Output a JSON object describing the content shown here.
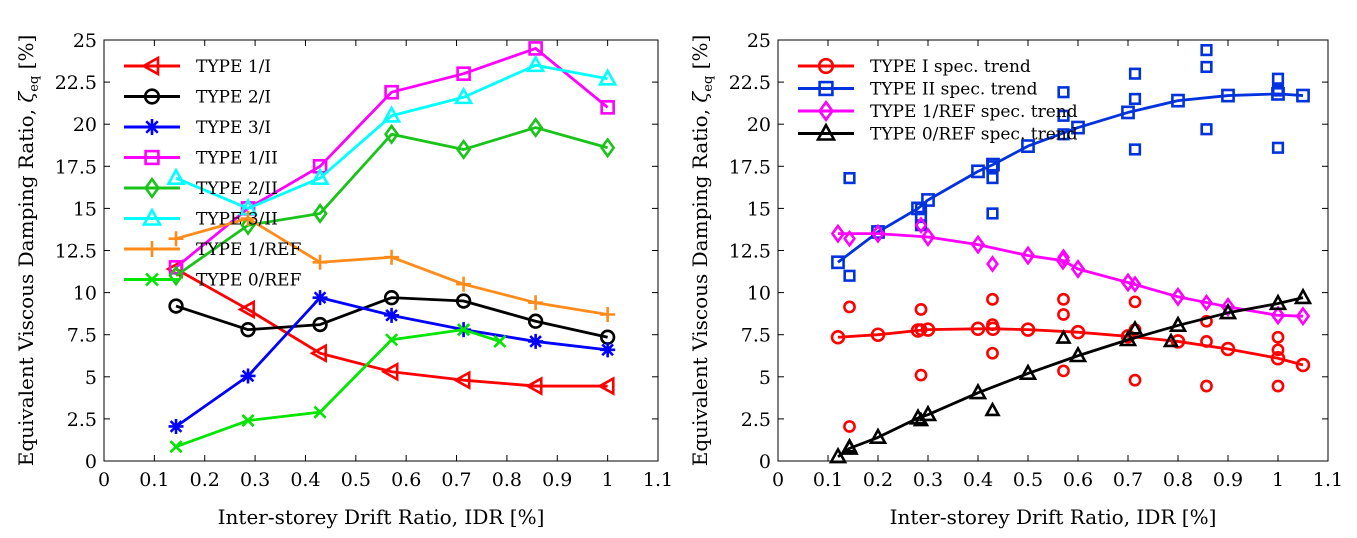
{
  "chart_data": [
    {
      "type": "line",
      "xlabel": "Inter-storey Drift Ratio, IDR [%]",
      "ylabel_main": "Equivalent Viscous Damping Ratio, ",
      "ylabel_sym": "ζ",
      "ylabel_sub": "eq",
      "ylabel_unit": " [%]",
      "xlim": [
        0,
        1.1
      ],
      "ylim": [
        0,
        25
      ],
      "xticks": [
        "0",
        "0.1",
        "0.2",
        "0.3",
        "0.4",
        "0.5",
        "0.6",
        "0.7",
        "0.8",
        "0.9",
        "1",
        "1.1"
      ],
      "xtick_values": [
        0,
        0.1,
        0.2,
        0.3,
        0.4,
        0.5,
        0.6,
        0.7,
        0.8,
        0.9,
        1,
        1.1
      ],
      "yticks": [
        "0",
        "2.5",
        "5",
        "7.5",
        "10",
        "12.5",
        "15",
        "17.5",
        "20",
        "22.5",
        "25"
      ],
      "ytick_values": [
        0,
        2.5,
        5,
        7.5,
        10,
        12.5,
        15,
        17.5,
        20,
        22.5,
        25
      ],
      "grid": false,
      "legend_position": "top-left",
      "series": [
        {
          "name": "TYPE 1/I",
          "color": "#ff0000",
          "marker": "triangle-left",
          "x": [
            0.143,
            0.286,
            0.429,
            0.571,
            0.714,
            0.857,
            1.0
          ],
          "y": [
            11.4,
            9.0,
            6.4,
            5.3,
            4.8,
            4.45,
            4.45
          ]
        },
        {
          "name": "TYPE 2/I",
          "color": "#000000",
          "marker": "circle",
          "x": [
            0.143,
            0.286,
            0.429,
            0.571,
            0.714,
            0.857,
            1.0
          ],
          "y": [
            9.2,
            7.8,
            8.1,
            9.7,
            9.5,
            8.3,
            7.35
          ]
        },
        {
          "name": "TYPE 3/I",
          "color": "#0000ff",
          "marker": "asterisk",
          "x": [
            0.143,
            0.286,
            0.429,
            0.571,
            0.714,
            0.857,
            1.0
          ],
          "y": [
            2.05,
            5.05,
            9.7,
            8.65,
            7.8,
            7.1,
            6.6
          ]
        },
        {
          "name": "TYPE 1/II",
          "color": "#ff00ff",
          "marker": "square",
          "x": [
            0.143,
            0.286,
            0.429,
            0.571,
            0.714,
            0.857,
            1.0
          ],
          "y": [
            11.5,
            15.0,
            17.5,
            21.9,
            23.0,
            24.5,
            21.0
          ]
        },
        {
          "name": "TYPE 2/II",
          "color": "#19c419",
          "marker": "diamond",
          "x": [
            0.143,
            0.286,
            0.429,
            0.571,
            0.714,
            0.857,
            1.0
          ],
          "y": [
            11.0,
            14.0,
            14.7,
            19.4,
            18.5,
            19.8,
            18.6
          ]
        },
        {
          "name": "TYPE 3/II",
          "color": "#00ffff",
          "marker": "triangle-up",
          "x": [
            0.143,
            0.286,
            0.429,
            0.571,
            0.714,
            0.857,
            1.0
          ],
          "y": [
            16.8,
            15.0,
            16.8,
            20.5,
            21.6,
            23.5,
            22.7
          ]
        },
        {
          "name": "TYPE 1/REF",
          "color": "#ff8c1a",
          "marker": "plus",
          "x": [
            0.143,
            0.286,
            0.429,
            0.571,
            0.714,
            0.857,
            1.0
          ],
          "y": [
            13.2,
            14.4,
            11.8,
            12.1,
            10.5,
            9.4,
            8.7
          ]
        },
        {
          "name": "TYPE 0/REF",
          "color": "#00e600",
          "marker": "cross",
          "x": [
            0.143,
            0.286,
            0.429,
            0.571,
            0.714,
            0.786
          ],
          "y": [
            0.85,
            2.4,
            2.9,
            7.2,
            7.8,
            7.1
          ]
        }
      ]
    },
    {
      "type": "scatter",
      "xlabel": "Inter-storey Drift Ratio, IDR [%]",
      "ylabel_main": "Equivalent Viscous Damping Ratio, ",
      "ylabel_sym": "ζ",
      "ylabel_sub": "eq",
      "ylabel_unit": " [%]",
      "xlim": [
        0,
        1.1
      ],
      "ylim": [
        0,
        25
      ],
      "xticks": [
        "0",
        "0.1",
        "0.2",
        "0.3",
        "0.4",
        "0.5",
        "0.6",
        "0.7",
        "0.8",
        "0.9",
        "1",
        "1.1"
      ],
      "xtick_values": [
        0,
        0.1,
        0.2,
        0.3,
        0.4,
        0.5,
        0.6,
        0.7,
        0.8,
        0.9,
        1,
        1.1
      ],
      "yticks": [
        "0",
        "2.5",
        "5",
        "7.5",
        "10",
        "12.5",
        "15",
        "17.5",
        "20",
        "22.5",
        "25"
      ],
      "ytick_values": [
        0,
        2.5,
        5,
        7.5,
        10,
        12.5,
        15,
        17.5,
        20,
        22.5,
        25
      ],
      "grid": false,
      "legend_position": "top-left",
      "series": [
        {
          "name": "TYPE I spec. trend",
          "color": "#ff0000",
          "marker": "circle",
          "trend_x": [
            0.12,
            0.2,
            0.28,
            0.3,
            0.4,
            0.43,
            0.5,
            0.6,
            0.7,
            0.8,
            0.9,
            1.0,
            1.05
          ],
          "trend_y": [
            7.35,
            7.5,
            7.75,
            7.8,
            7.85,
            7.85,
            7.8,
            7.65,
            7.4,
            7.1,
            6.65,
            6.1,
            5.7
          ],
          "points_x": [
            0.143,
            0.143,
            0.286,
            0.286,
            0.286,
            0.429,
            0.429,
            0.429,
            0.571,
            0.571,
            0.571,
            0.714,
            0.714,
            0.714,
            0.857,
            0.857,
            0.857,
            1.0,
            1.0,
            1.0
          ],
          "points_y": [
            9.15,
            2.05,
            9.0,
            7.8,
            5.1,
            9.6,
            8.1,
            6.4,
            9.6,
            8.7,
            5.35,
            9.45,
            7.8,
            4.8,
            8.3,
            7.1,
            4.45,
            7.35,
            6.6,
            4.45
          ]
        },
        {
          "name": "TYPE II spec. trend",
          "color": "#0033dd",
          "marker": "square",
          "trend_x": [
            0.12,
            0.2,
            0.28,
            0.3,
            0.4,
            0.43,
            0.5,
            0.6,
            0.7,
            0.8,
            0.9,
            1.0,
            1.05
          ],
          "trend_y": [
            11.8,
            13.6,
            15.0,
            15.5,
            17.2,
            17.6,
            18.7,
            19.8,
            20.7,
            21.4,
            21.7,
            21.8,
            21.7
          ],
          "points_x": [
            0.143,
            0.143,
            0.286,
            0.286,
            0.286,
            0.429,
            0.429,
            0.429,
            0.571,
            0.571,
            0.571,
            0.714,
            0.714,
            0.714,
            0.857,
            0.857,
            0.857,
            1.0,
            1.0,
            1.0
          ],
          "points_y": [
            16.8,
            11.0,
            15.0,
            14.5,
            14.0,
            17.5,
            16.8,
            14.7,
            21.9,
            20.5,
            19.4,
            23.0,
            21.5,
            18.5,
            24.4,
            23.4,
            19.7,
            22.7,
            22.0,
            18.6
          ]
        },
        {
          "name": "TYPE 1/REF spec. trend",
          "color": "#ff00ff",
          "marker": "diamond",
          "trend_x": [
            0.12,
            0.2,
            0.3,
            0.4,
            0.5,
            0.57,
            0.6,
            0.7,
            0.8,
            0.9,
            1.0,
            1.05
          ],
          "trend_y": [
            13.5,
            13.5,
            13.3,
            12.85,
            12.2,
            11.9,
            11.4,
            10.6,
            9.75,
            9.15,
            8.65,
            8.6
          ],
          "points_x": [
            0.143,
            0.286,
            0.429,
            0.571,
            0.714,
            0.857
          ],
          "points_y": [
            13.2,
            14.0,
            11.7,
            12.1,
            10.5,
            9.4
          ]
        },
        {
          "name": "TYPE 0/REF spec. trend",
          "color": "#000000",
          "marker": "triangle-up",
          "trend_x": [
            0.12,
            0.143,
            0.2,
            0.28,
            0.3,
            0.4,
            0.5,
            0.6,
            0.7,
            0.8,
            0.9,
            1.0,
            1.05
          ],
          "trend_y": [
            0.25,
            0.75,
            1.4,
            2.55,
            2.75,
            4.05,
            5.2,
            6.25,
            7.2,
            8.05,
            8.8,
            9.35,
            9.7
          ],
          "points_x": [
            0.143,
            0.286,
            0.429,
            0.571,
            0.714,
            0.786
          ],
          "points_y": [
            0.85,
            2.4,
            3.0,
            7.3,
            7.85,
            7.1
          ]
        }
      ]
    }
  ]
}
